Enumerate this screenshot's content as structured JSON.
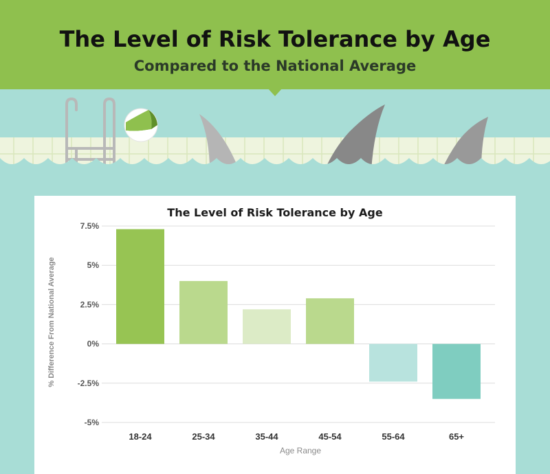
{
  "header": {
    "title": "The Level of Risk Tolerance by Age",
    "subtitle": "Compared to the National Average"
  },
  "colors": {
    "header_bg": "#8fc04e",
    "water": "#a8ddd6",
    "pool_tile": "#eef4de",
    "fin_light": "#b5b5b5",
    "fin_dark": "#888888"
  },
  "chart_data": {
    "type": "bar",
    "title": "The Level of Risk Tolerance by Age",
    "xlabel": "Age Range",
    "ylabel": "% Difference From National Average",
    "categories": [
      "18-24",
      "25-34",
      "35-44",
      "45-54",
      "55-64",
      "65+"
    ],
    "values": [
      7.3,
      4.0,
      2.2,
      2.9,
      -2.4,
      -3.5
    ],
    "bar_colors": [
      "#97c453",
      "#bad98d",
      "#dcebc6",
      "#bad98d",
      "#b8e3de",
      "#7fcdc0"
    ],
    "ylim": [
      -5,
      7.5
    ],
    "yticks": [
      7.5,
      5,
      2.5,
      0,
      -2.5,
      -5
    ],
    "ytick_labels": [
      "7.5%",
      "5%",
      "2.5%",
      "0%",
      "-2.5%",
      "-5%"
    ],
    "grid": true
  }
}
